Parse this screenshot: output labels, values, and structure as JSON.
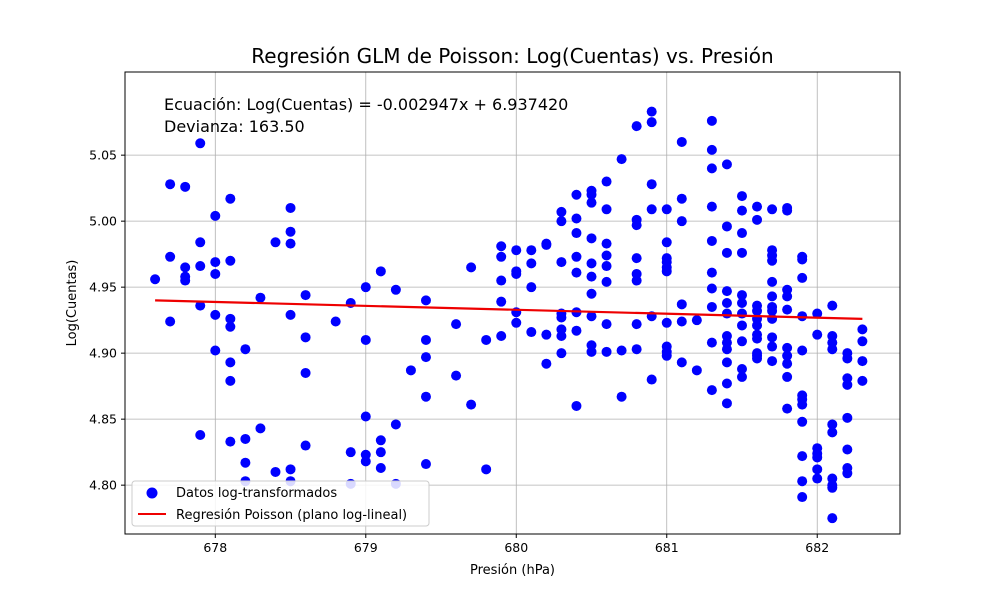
{
  "chart_data": {
    "type": "scatter",
    "title": "Regresión GLM de Poisson: Log(Cuentas) vs. Presión",
    "xlabel": "Presión (hPa)",
    "ylabel": "Log(Cuentas)",
    "xlim": [
      677.4,
      682.55
    ],
    "ylim": [
      4.763,
      5.113
    ],
    "xticks": [
      678,
      679,
      680,
      681,
      682
    ],
    "xtick_labels": [
      "678",
      "679",
      "680",
      "681",
      "682"
    ],
    "yticks": [
      4.8,
      4.85,
      4.9,
      4.95,
      5.0,
      5.05
    ],
    "ytick_labels": [
      "4.80",
      "4.85",
      "4.90",
      "4.95",
      "5.00",
      "5.05"
    ],
    "grid": true,
    "legend_position": "bottom-left",
    "annotations": [
      "Ecuación: Log(Cuentas) = -0.002947x + 6.937420",
      "Devianza: 163.50"
    ],
    "colors": {
      "points": "#0000ff",
      "line": "#ee0000"
    },
    "series": [
      {
        "name": "Datos log-transformados",
        "kind": "scatter",
        "x": [
          677.6,
          677.7,
          677.7,
          677.7,
          677.8,
          677.8,
          677.8,
          677.8,
          677.9,
          677.9,
          677.9,
          677.9,
          677.9,
          678.0,
          678.0,
          678.0,
          678.0,
          678.0,
          678.1,
          678.1,
          678.1,
          678.1,
          678.1,
          678.1,
          678.1,
          678.2,
          678.2,
          678.2,
          678.2,
          678.3,
          678.3,
          678.4,
          678.4,
          678.5,
          678.5,
          678.5,
          678.5,
          678.5,
          678.5,
          678.6,
          678.6,
          678.6,
          678.6,
          678.8,
          678.9,
          678.9,
          678.9,
          679.0,
          679.0,
          679.0,
          679.0,
          679.0,
          679.1,
          679.1,
          679.1,
          679.1,
          679.2,
          679.2,
          679.2,
          679.3,
          679.4,
          679.4,
          679.4,
          679.4,
          679.4,
          679.6,
          679.6,
          679.7,
          679.7,
          679.8,
          679.8,
          679.9,
          679.9,
          679.9,
          679.9,
          679.9,
          680.0,
          680.0,
          680.0,
          680.0,
          680.0,
          680.1,
          680.1,
          680.1,
          680.1,
          680.2,
          680.2,
          680.2,
          680.2,
          680.3,
          680.3,
          680.3,
          680.3,
          680.3,
          680.3,
          680.3,
          680.3,
          680.4,
          680.4,
          680.4,
          680.4,
          680.4,
          680.4,
          680.4,
          680.4,
          680.5,
          680.5,
          680.5,
          680.5,
          680.5,
          680.5,
          680.5,
          680.5,
          680.5,
          680.5,
          680.6,
          680.6,
          680.6,
          680.6,
          680.6,
          680.6,
          680.6,
          680.6,
          680.7,
          680.7,
          680.7,
          680.8,
          680.8,
          680.8,
          680.8,
          680.8,
          680.8,
          680.8,
          680.8,
          680.9,
          680.9,
          680.9,
          680.9,
          680.9,
          680.9,
          681.0,
          681.0,
          681.0,
          681.0,
          681.0,
          681.0,
          681.0,
          681.0,
          681.0,
          681.0,
          681.1,
          681.1,
          681.1,
          681.1,
          681.1,
          681.1,
          681.2,
          681.2,
          681.3,
          681.3,
          681.3,
          681.3,
          681.3,
          681.3,
          681.3,
          681.3,
          681.3,
          681.3,
          681.4,
          681.4,
          681.4,
          681.4,
          681.4,
          681.4,
          681.4,
          681.4,
          681.4,
          681.4,
          681.4,
          681.4,
          681.5,
          681.5,
          681.5,
          681.5,
          681.5,
          681.5,
          681.5,
          681.5,
          681.5,
          681.5,
          681.5,
          681.6,
          681.6,
          681.6,
          681.6,
          681.6,
          681.6,
          681.6,
          681.6,
          681.6,
          681.6,
          681.6,
          681.7,
          681.7,
          681.7,
          681.7,
          681.7,
          681.7,
          681.7,
          681.7,
          681.7,
          681.7,
          681.7,
          681.7,
          681.8,
          681.8,
          681.8,
          681.8,
          681.8,
          681.8,
          681.8,
          681.8,
          681.8,
          681.8,
          681.9,
          681.9,
          681.9,
          681.9,
          681.9,
          681.9,
          681.9,
          681.9,
          681.9,
          681.9,
          681.9,
          681.9,
          682.0,
          682.0,
          682.0,
          682.0,
          682.0,
          682.0,
          682.0,
          682.1,
          682.1,
          682.1,
          682.1,
          682.1,
          682.1,
          682.1,
          682.1,
          682.1,
          682.1,
          682.2,
          682.2,
          682.2,
          682.2,
          682.2,
          682.2,
          682.2,
          682.2,
          682.3,
          682.3,
          682.3,
          682.3
        ],
        "y": [
          4.956,
          5.028,
          4.973,
          4.924,
          5.026,
          4.965,
          4.958,
          4.955,
          5.059,
          4.984,
          4.966,
          4.936,
          4.838,
          5.004,
          4.969,
          4.96,
          4.929,
          4.902,
          5.017,
          4.97,
          4.926,
          4.92,
          4.893,
          4.879,
          4.833,
          4.903,
          4.835,
          4.817,
          4.803,
          4.942,
          4.843,
          4.984,
          4.81,
          5.01,
          4.992,
          4.983,
          4.929,
          4.812,
          4.803,
          4.944,
          4.912,
          4.885,
          4.83,
          4.924,
          4.938,
          4.825,
          4.801,
          4.95,
          4.91,
          4.852,
          4.823,
          4.818,
          4.962,
          4.834,
          4.825,
          4.813,
          4.948,
          4.846,
          4.801,
          4.887,
          4.94,
          4.91,
          4.897,
          4.867,
          4.816,
          4.922,
          4.883,
          4.965,
          4.861,
          4.91,
          4.812,
          4.981,
          4.973,
          4.955,
          4.939,
          4.913,
          4.978,
          4.962,
          4.96,
          4.931,
          4.923,
          4.978,
          4.968,
          4.95,
          4.916,
          4.983,
          4.982,
          4.914,
          4.892,
          5.007,
          5.0,
          4.969,
          4.93,
          4.927,
          4.918,
          4.913,
          4.9,
          5.02,
          5.002,
          4.991,
          4.973,
          4.961,
          4.931,
          4.917,
          4.86,
          5.023,
          5.02,
          5.014,
          4.987,
          4.968,
          4.958,
          4.945,
          4.928,
          4.906,
          4.901,
          5.03,
          5.009,
          4.983,
          4.974,
          4.966,
          4.954,
          4.922,
          4.901,
          5.047,
          4.902,
          4.867,
          5.072,
          5.001,
          4.997,
          4.972,
          4.96,
          4.955,
          4.922,
          4.903,
          5.083,
          5.075,
          5.028,
          5.009,
          4.928,
          4.88,
          5.009,
          4.984,
          4.972,
          4.969,
          4.965,
          4.962,
          4.923,
          4.905,
          4.901,
          4.898,
          5.06,
          5.017,
          5.0,
          4.937,
          4.924,
          4.893,
          4.925,
          4.887,
          5.076,
          5.054,
          5.04,
          5.011,
          4.985,
          4.961,
          4.949,
          4.935,
          4.908,
          4.872,
          5.043,
          4.996,
          4.976,
          4.947,
          4.938,
          4.93,
          4.913,
          4.908,
          4.903,
          4.893,
          4.877,
          4.862,
          5.019,
          5.008,
          4.991,
          4.976,
          4.944,
          4.938,
          4.93,
          4.921,
          4.909,
          4.888,
          4.882,
          5.011,
          5.001,
          4.936,
          4.932,
          4.926,
          4.921,
          4.914,
          4.911,
          4.9,
          4.896,
          4.898,
          5.009,
          4.978,
          4.974,
          4.97,
          4.954,
          4.943,
          4.935,
          4.932,
          4.926,
          4.912,
          4.905,
          4.894,
          5.01,
          5.008,
          4.948,
          4.943,
          4.933,
          4.904,
          4.898,
          4.892,
          4.882,
          4.858,
          4.973,
          4.971,
          4.957,
          4.928,
          4.902,
          4.868,
          4.865,
          4.861,
          4.848,
          4.822,
          4.803,
          4.791,
          4.93,
          4.914,
          4.828,
          4.824,
          4.821,
          4.812,
          4.805,
          4.936,
          4.913,
          4.908,
          4.903,
          4.846,
          4.84,
          4.805,
          4.8,
          4.798,
          4.775,
          4.9,
          4.896,
          4.881,
          4.876,
          4.851,
          4.827,
          4.813,
          4.809,
          4.918,
          4.909,
          4.894,
          4.879
        ]
      },
      {
        "name": "Regresión Poisson (plano log-lineal)",
        "kind": "line",
        "x": [
          677.6,
          682.3
        ],
        "y": [
          4.94,
          4.926
        ]
      }
    ]
  }
}
